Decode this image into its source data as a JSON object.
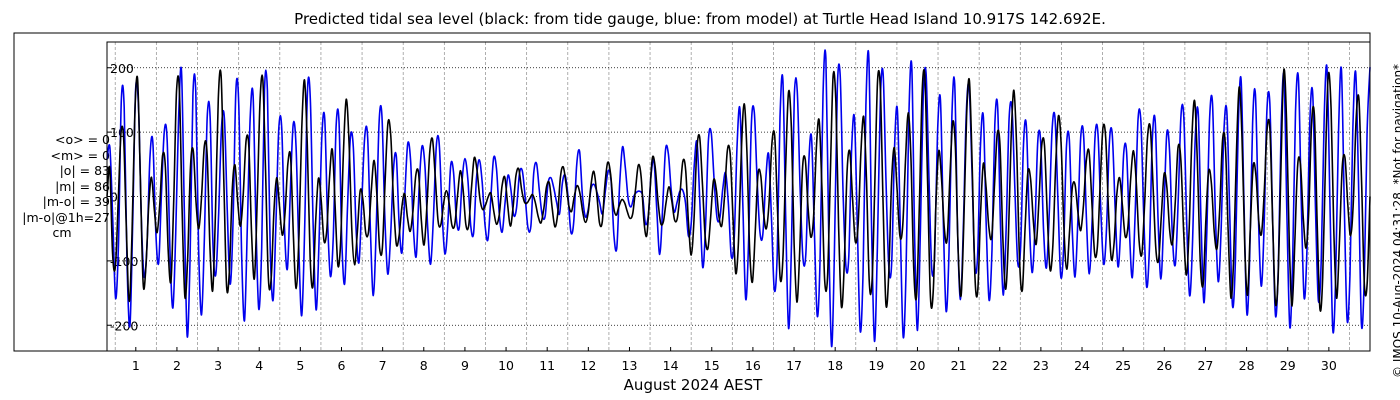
{
  "header": {
    "title": "Predicted tidal sea level (black: from tide gauge, blue: from model) at Turtle Head Island 10.917S 142.692E."
  },
  "stats": {
    "rows": [
      "<o> = 0",
      "<m> = 0",
      "|o| = 83",
      "|m| = 86",
      "|m-o| = 39",
      "|m-o|@1h=27"
    ],
    "unit": "cm"
  },
  "footer": {
    "xlabel": "August 2024 AEST"
  },
  "side_note": "© IMOS 10-Aug-2024 04:31:28. *Not for navigation*",
  "colors": {
    "gauge": "#000000",
    "model": "#0000ee",
    "grid": "#9a9a9a"
  },
  "chart_data": {
    "type": "line",
    "title": "Predicted tidal sea level (black: from tide gauge, blue: from model) at Turtle Head Island 10.917S 142.692E.",
    "xlabel": "August 2024 AEST",
    "ylabel": "",
    "y_unit": "cm",
    "xlim": [
      0.3,
      31.0
    ],
    "ylim": [
      -240,
      240
    ],
    "x_ticks": [
      1,
      2,
      3,
      4,
      5,
      6,
      7,
      8,
      9,
      10,
      11,
      12,
      13,
      14,
      15,
      16,
      17,
      18,
      19,
      20,
      21,
      22,
      23,
      24,
      25,
      26,
      27,
      28,
      29,
      30
    ],
    "y_ticks": [
      -200,
      -100,
      0,
      100,
      200
    ],
    "y_tick_labels": [
      "-200",
      "-100",
      "0",
      "100",
      "200"
    ],
    "grid": true,
    "sample_step_days": 0.05,
    "series": [
      {
        "name": "tide gauge",
        "color": "black",
        "values": [
          0,
          44,
          -89,
          -110,
          -12,
          97,
          89,
          -57,
          -163,
          -58,
          127,
          182,
          25,
          -136,
          -109,
          -14,
          30,
          -20,
          -56,
          -9,
          64,
          45,
          -84,
          -131,
          -3,
          163,
          167,
          -20,
          -156,
          -95,
          46,
          72,
          -8,
          -50,
          1,
          79,
          66,
          -77,
          -146,
          -23,
          152,
          188,
          25,
          -140,
          -115,
          9,
          49,
          -10,
          -46,
          5,
          87,
          76,
          -62,
          -127,
          -6,
          147,
          182,
          38,
          -127,
          -129,
          -24,
          29,
          -15,
          -60,
          -26,
          50,
          61,
          -61,
          -143,
          -60,
          104,
          181,
          80,
          -93,
          -140,
          -40,
          28,
          -6,
          -69,
          -52,
          31,
          73,
          -14,
          -107,
          -68,
          71,
          151,
          85,
          -51,
          -106,
          -54,
          9,
          -5,
          -56,
          -55,
          9,
          56,
          5,
          -80,
          -79,
          27,
          115,
          94,
          -8,
          -74,
          -61,
          -16,
          4,
          -32,
          -54,
          -22,
          33,
          36,
          -38,
          -75,
          -15,
          68,
          89,
          30,
          -38,
          -44,
          -11,
          9,
          -11,
          -45,
          -44,
          1,
          40,
          11,
          -44,
          -45,
          12,
          60,
          41,
          -2,
          -20,
          -14,
          -1,
          5,
          -22,
          -43,
          -28,
          16,
          30,
          -12,
          -46,
          -15,
          32,
          43,
          12,
          -8,
          -10,
          -3,
          3,
          -10,
          -31,
          -41,
          -19,
          15,
          21,
          -17,
          -47,
          -27,
          31,
          46,
          20,
          -14,
          -23,
          1,
          17,
          5,
          -24,
          -40,
          -24,
          19,
          39,
          7,
          -40,
          -40,
          19,
          53,
          36,
          -13,
          -29,
          -16,
          -5,
          -9,
          -23,
          -34,
          -26,
          12,
          49,
          31,
          -37,
          -61,
          -5,
          59,
          48,
          -4,
          -41,
          -39,
          -8,
          15,
          -6,
          -36,
          -34,
          6,
          55,
          42,
          -39,
          -91,
          -36,
          71,
          93,
          23,
          -61,
          -81,
          -31,
          25,
          12,
          -32,
          -45,
          2,
          72,
          66,
          -30,
          -119,
          -69,
          68,
          144,
          74,
          -81,
          -133,
          -56,
          34,
          32,
          -25,
          -50,
          -8,
          82,
          94,
          -17,
          -128,
          -93,
          53,
          163,
          106,
          -73,
          -164,
          -85,
          43,
          57,
          -16,
          -63,
          -31,
          76,
          118,
          10,
          -131,
          -126,
          32,
          187,
          146,
          -46,
          -171,
          -108,
          36,
          70,
          -4,
          -70,
          -44,
          68,
          124,
          26,
          -133,
          -133,
          19,
          181,
          165,
          -18,
          -167,
          -122,
          20,
          76,
          11,
          -61,
          -48,
          53,
          130,
          57,
          -114,
          -155,
          -17,
          161,
          185,
          17,
          -158,
          -148,
          -8,
          71,
          26,
          -51,
          -67,
          31,
          116,
          72,
          -90,
          -154,
          -41,
          125,
          180,
          47,
          -126,
          -147,
          -28,
          51,
          14,
          -48,
          -63,
          15,
          97,
          79,
          -62,
          -144,
          -68,
          90,
          165,
          73,
          -96,
          -146,
          -52,
          37,
          27,
          -39,
          -74,
          -7,
          79,
          79,
          -29,
          -114,
          -75,
          46,
          125,
          79,
          -52,
          -113,
          -53,
          14,
          18,
          -24,
          -53,
          -13,
          54,
          70,
          -7,
          -88,
          -78,
          19,
          106,
          91,
          -22,
          -97,
          -72,
          3,
          29,
          -14,
          -62,
          -46,
          30,
          71,
          21,
          -69,
          -89,
          -9,
          90,
          108,
          19,
          -80,
          -99,
          -29,
          35,
          14,
          -53,
          -73,
          -8,
          76,
          58,
          -53,
          -122,
          -49,
          95,
          148,
          46,
          -102,
          -137,
          -36,
          39,
          20,
          -54,
          -81,
          -17,
          88,
          81,
          -51,
          -157,
          -94,
          71,
          170,
          91,
          -80,
          -153,
          -47,
          47,
          33,
          -37,
          -58,
          9,
          104,
          105,
          -38,
          -165,
          -123,
          48,
          196,
          120,
          -75,
          -170,
          -67,
          49,
          49,
          -32,
          -80,
          -21,
          114,
          126,
          -38,
          -174,
          -125,
          55,
          189,
          136,
          -53,
          -158,
          -72,
          45,
          60,
          -10,
          -61,
          -9,
          119,
          152,
          17,
          -138,
          -134,
          0
        ]
      },
      {
        "name": "model",
        "color": "blue",
        "values": [
          58,
          76,
          -34,
          -158,
          -73,
          149,
          138,
          -103,
          -201,
          -34,
          166,
          139,
          -37,
          -125,
          -72,
          62,
          85,
          -51,
          -104,
          3,
          101,
          89,
          -86,
          -173,
          -58,
          122,
          195,
          -20,
          -217,
          -94,
          157,
          162,
          -81,
          -184,
          -64,
          123,
          124,
          -76,
          -121,
          -25,
          109,
          121,
          -23,
          -136,
          -41,
          165,
          145,
          -88,
          -193,
          -49,
          123,
          157,
          -41,
          -175,
          -79,
          166,
          165,
          -81,
          -161,
          -38,
          106,
          107,
          -52,
          -112,
          6,
          112,
          79,
          -84,
          -185,
          -53,
          165,
          152,
          -47,
          -176,
          -76,
          91,
          122,
          -33,
          -124,
          -62,
          109,
          117,
          -70,
          -135,
          -13,
          92,
          77,
          -54,
          -102,
          -5,
          94,
          93,
          -56,
          -154,
          -50,
          115,
          126,
          -30,
          -120,
          -64,
          40,
          63,
          -42,
          -87,
          4,
          82,
          56,
          -50,
          -92,
          16,
          78,
          48,
          -51,
          -105,
          -30,
          80,
          82,
          -25,
          -89,
          -43,
          48,
          38,
          -35,
          -48,
          25,
          59,
          26,
          -45,
          -57,
          27,
          57,
          22,
          -44,
          -67,
          -3,
          60,
          43,
          -29,
          -55,
          -9,
          33,
          12,
          -29,
          -18,
          35,
          40,
          0,
          -49,
          -46,
          36,
          51,
          7,
          -30,
          -30,
          20,
          29,
          13,
          -9,
          -27,
          21,
          33,
          -1,
          -56,
          -38,
          49,
          70,
          2,
          -31,
          -21,
          12,
          19,
          8,
          -9,
          -27,
          8,
          40,
          24,
          -60,
          -80,
          18,
          77,
          44,
          -4,
          -16,
          1,
          7,
          8,
          1,
          -42,
          -29,
          34,
          55,
          -24,
          -90,
          -19,
          72,
          67,
          10,
          -24,
          -10,
          8,
          10,
          -10,
          -61,
          -42,
          45,
          85,
          -7,
          -110,
          -44,
          87,
          98,
          24,
          -33,
          -33,
          11,
          37,
          -14,
          -93,
          -65,
          80,
          136,
          -11,
          -159,
          -74,
          113,
          131,
          26,
          -56,
          -59,
          25,
          66,
          -31,
          -145,
          -91,
          123,
          180,
          -40,
          -205,
          -73,
          156,
          165,
          14,
          -95,
          -90,
          50,
          92,
          -54,
          -186,
          -95,
          157,
          214,
          -58,
          -233,
          -87,
          168,
          188,
          10,
          -108,
          -93,
          73,
          121,
          -49,
          -209,
          -116,
          142,
          216,
          -57,
          -225,
          -78,
          147,
          191,
          25,
          -111,
          -102,
          78,
          134,
          -50,
          -218,
          -119,
          128,
          201,
          -61,
          -208,
          -52,
          155,
          191,
          27,
          -114,
          -88,
          98,
          151,
          -37,
          -178,
          -87,
          125,
          175,
          -52,
          -160,
          -49,
          125,
          172,
          44,
          -106,
          -91,
          80,
          123,
          -44,
          -161,
          -83,
          111,
          138,
          -51,
          -153,
          -43,
          121,
          136,
          11,
          -102,
          -79,
          81,
          111,
          -33,
          -118,
          -50,
          86,
          86,
          -50,
          -111,
          -28,
          104,
          122,
          0,
          -123,
          -81,
          76,
          89,
          -47,
          -125,
          -36,
          92,
          95,
          -37,
          -120,
          -35,
          94,
          99,
          -20,
          -105,
          -50,
          84,
          97,
          -17,
          -109,
          -47,
          67,
          69,
          -53,
          -126,
          -25,
          119,
          117,
          -28,
          -140,
          -78,
          88,
          117,
          -37,
          -128,
          -32,
          96,
          72,
          -61,
          -106,
          -10,
          126,
          123,
          -41,
          -154,
          -77,
          93,
          131,
          -38,
          -165,
          -56,
          121,
          145,
          -24,
          -132,
          -53,
          101,
          133,
          -24,
          -170,
          -100,
          111,
          181,
          -10,
          -182,
          -93,
          113,
          159,
          -25,
          -139,
          -51,
          133,
          146,
          -33,
          -185,
          -106,
          111,
          186,
          -29,
          -203,
          -96,
          131,
          184,
          -8,
          -157,
          -81,
          118,
          160,
          -25,
          -162,
          -95,
          123,
          199,
          -7,
          -207,
          -129,
          99,
          198,
          -8,
          -191,
          -121,
          103,
          193,
          23,
          -198,
          -126,
          101,
          201
        ]
      }
    ]
  }
}
